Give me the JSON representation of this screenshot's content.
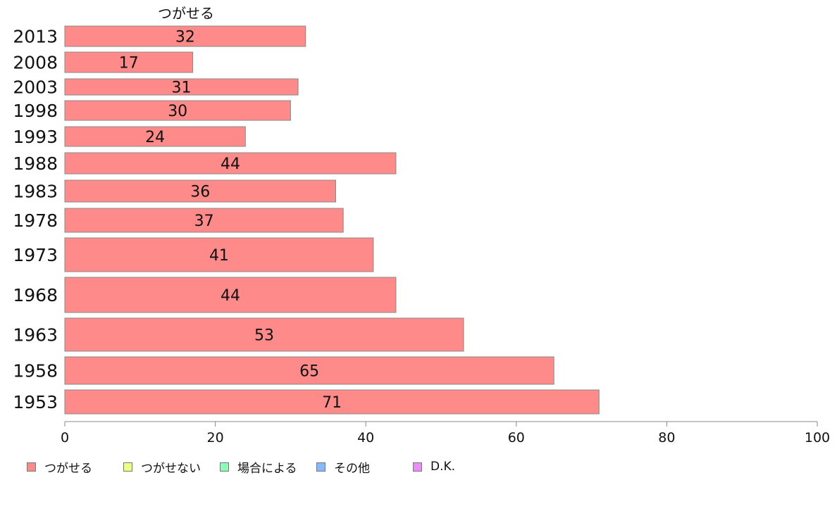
{
  "chart_data": {
    "type": "bar",
    "orientation": "horizontal",
    "stacked": true,
    "series_label": "つがせる",
    "categories": [
      "2013",
      "2008",
      "2003",
      "1998",
      "1993",
      "1988",
      "1983",
      "1978",
      "1973",
      "1968",
      "1963",
      "1958",
      "1953"
    ],
    "series": [
      {
        "name": "つがせる",
        "color": "#ff8a8a",
        "values": [
          32,
          17,
          31,
          30,
          24,
          44,
          36,
          37,
          41,
          44,
          53,
          65,
          71
        ]
      }
    ],
    "xlim": [
      0,
      100
    ],
    "xticks": [
      0,
      20,
      40,
      60,
      80,
      100
    ],
    "grid": false
  },
  "legend": {
    "placement": "bottom-left",
    "items": [
      {
        "label": "つがせる",
        "color": "#ff8a8a"
      },
      {
        "label": "つがせない",
        "color": "#eaff8a"
      },
      {
        "label": "場合による",
        "color": "#8affb6"
      },
      {
        "label": "その他",
        "color": "#8ab8ff"
      },
      {
        "label": "D.K.",
        "color": "#f08aff"
      }
    ]
  }
}
